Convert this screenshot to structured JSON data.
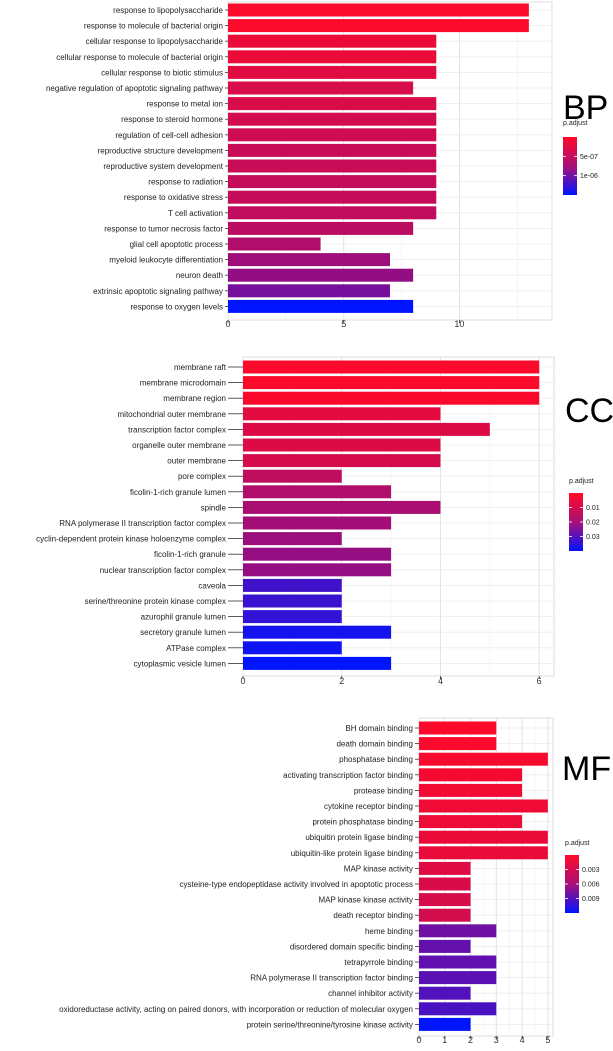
{
  "chart_data": [
    {
      "type": "bar",
      "panel_label": "BP",
      "orientation": "horizontal",
      "xlim": [
        0,
        14
      ],
      "xticks": [
        0,
        5,
        10
      ],
      "grid": true,
      "legend_title": "p.adjust",
      "legend_ticks": [
        "5e-07",
        "1e-06"
      ],
      "categories": [
        "response to lipopolysaccharide",
        "response to molecule of bacterial origin",
        "cellular response to lipopolysaccharide",
        "cellular response to molecule of bacterial origin",
        "cellular response to biotic stimulus",
        "negative regulation of apoptotic signaling pathway",
        "response to metal ion",
        "response to steroid hormone",
        "regulation of cell-cell adhesion",
        "reproductive structure development",
        "reproductive system development",
        "response to radiation",
        "response to oxidative stress",
        "T cell activation",
        "response to tumor necrosis factor",
        "glial cell apoptotic process",
        "myeloid leukocyte differentiation",
        "neuron death",
        "extrinsic apoptotic signaling pathway",
        "response to oxygen levels"
      ],
      "values": [
        13,
        13,
        9,
        9,
        9,
        8,
        9,
        9,
        9,
        9,
        9,
        9,
        9,
        9,
        8,
        4,
        7,
        8,
        7,
        8
      ],
      "p_adjust": [
        2e-08,
        2e-08,
        1e-07,
        1e-07,
        1.5e-07,
        2e-07,
        2e-07,
        2.3e-07,
        2.5e-07,
        2.8e-07,
        2.8e-07,
        3e-07,
        3e-07,
        3.2e-07,
        3.5e-07,
        4e-07,
        5e-07,
        5.5e-07,
        7e-07,
        1.3e-06
      ],
      "color_range": [
        0,
        1.3e-06
      ]
    },
    {
      "type": "bar",
      "panel_label": "CC",
      "orientation": "horizontal",
      "xlim": [
        0,
        6.3
      ],
      "xticks": [
        0,
        2,
        4,
        6
      ],
      "grid": true,
      "legend_title": "p.adjust",
      "legend_ticks": [
        "0.01",
        "0.02",
        "0.03"
      ],
      "categories": [
        "membrane raft",
        "membrane microdomain",
        "membrane region",
        "mitochondrial outer membrane",
        "transcription factor complex",
        "organelle outer membrane",
        "outer membrane",
        "pore complex",
        "ficolin-1-rich granule lumen",
        "spindle",
        "RNA polymerase II transcription factor complex",
        "cyclin-dependent protein kinase holoenzyme complex",
        "ficolin-1-rich granule",
        "nuclear transcription factor complex",
        "caveola",
        "serine/threonine protein kinase complex",
        "azurophil granule lumen",
        "secretory granule lumen",
        "ATPase complex",
        "cytoplasmic vesicle lumen"
      ],
      "values": [
        6,
        6,
        6,
        4,
        5,
        4,
        4,
        2,
        3,
        4,
        3,
        2,
        3,
        3,
        2,
        2,
        2,
        3,
        2,
        3
      ],
      "p_adjust": [
        0.0005,
        0.0005,
        0.0008,
        0.004,
        0.005,
        0.005,
        0.006,
        0.009,
        0.011,
        0.012,
        0.013,
        0.014,
        0.015,
        0.015,
        0.027,
        0.028,
        0.029,
        0.033,
        0.034,
        0.036
      ],
      "color_range": [
        0,
        0.036
      ]
    },
    {
      "type": "bar",
      "panel_label": "MF",
      "orientation": "horizontal",
      "xlim": [
        0,
        5.2
      ],
      "xticks": [
        0,
        1,
        2,
        3,
        4,
        5
      ],
      "grid": true,
      "legend_title": "p.adjust",
      "legend_ticks": [
        "0.003",
        "0.006",
        "0.009"
      ],
      "categories": [
        "BH domain binding",
        "death domain binding",
        "phosphatase binding",
        "activating transcription factor binding",
        "protease binding",
        "cytokine receptor binding",
        "protein phosphatase binding",
        "ubiquitin protein ligase binding",
        "ubiquitin-like protein ligase binding",
        "MAP kinase activity",
        "cysteine-type endopeptidase activity involved in apoptotic process",
        "MAP kinase kinase activity",
        "death receptor binding",
        "heme binding",
        "disordered domain specific binding",
        "tetrapyrrole binding",
        "RNA polymerase II transcription factor binding",
        "channel inhibitor activity",
        "oxidoreductase activity, acting on paired donors, with incorporation or reduction of molecular oxygen",
        "protein serine/threonine/tyrosine kinase activity"
      ],
      "values": [
        3,
        3,
        5,
        4,
        4,
        5,
        4,
        5,
        5,
        2,
        2,
        2,
        2,
        3,
        2,
        3,
        3,
        2,
        3,
        2
      ],
      "p_adjust": [
        0.0002,
        0.0002,
        0.0003,
        0.0005,
        0.0006,
        0.0007,
        0.0008,
        0.0009,
        0.001,
        0.0015,
        0.0017,
        0.0018,
        0.002,
        0.0065,
        0.007,
        0.0072,
        0.0075,
        0.0078,
        0.0082,
        0.0115
      ],
      "color_range": [
        0,
        0.0115
      ]
    }
  ]
}
